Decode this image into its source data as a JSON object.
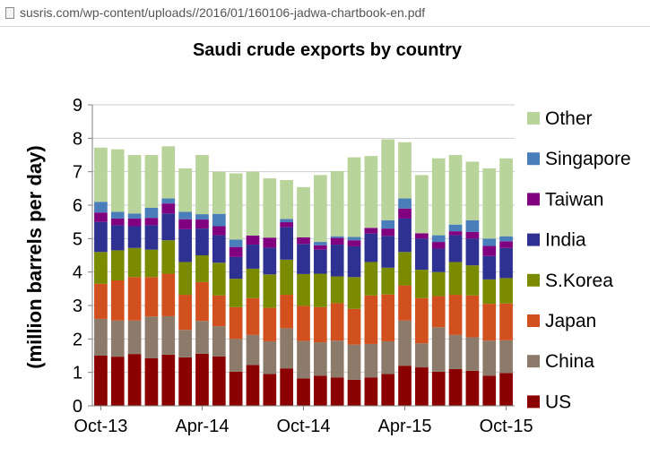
{
  "browser": {
    "url": "susris.com/wp-content/uploads//2016/01/160106-jadwa-chartbook-en.pdf"
  },
  "chart_data": {
    "type": "bar",
    "stacked": true,
    "title": "Saudi crude exports by country",
    "ylabel": "(million barrels per day)",
    "xlabel": "",
    "ylim": [
      0,
      9
    ],
    "yticks": [
      0,
      1,
      2,
      3,
      4,
      5,
      6,
      7,
      8,
      9
    ],
    "gridlines": "y",
    "legend_position": "right",
    "x_tick_labels": [
      {
        "index": 0,
        "label": "Oct-13"
      },
      {
        "index": 6,
        "label": "Apr-14"
      },
      {
        "index": 12,
        "label": "Oct-14"
      },
      {
        "index": 18,
        "label": "Apr-15"
      },
      {
        "index": 24,
        "label": "Oct-15"
      }
    ],
    "categories": [
      "Oct-13",
      "Nov-13",
      "Dec-13",
      "Jan-14",
      "Feb-14",
      "Mar-14",
      "Apr-14",
      "May-14",
      "Jun-14",
      "Jul-14",
      "Aug-14",
      "Sep-14",
      "Oct-14",
      "Nov-14",
      "Dec-14",
      "Jan-15",
      "Feb-15",
      "Mar-15",
      "Apr-15",
      "May-15",
      "Jun-15",
      "Jul-15",
      "Aug-15",
      "Sep-15",
      "Oct-15"
    ],
    "series": [
      {
        "name": "US",
        "color": "#8B0000",
        "values": [
          1.5,
          1.47,
          1.55,
          1.42,
          1.53,
          1.45,
          1.56,
          1.48,
          1.02,
          1.22,
          0.95,
          1.12,
          0.82,
          0.9,
          0.85,
          0.78,
          0.85,
          0.95,
          1.2,
          1.15,
          1.02,
          1.1,
          1.05,
          0.9,
          0.98
        ]
      },
      {
        "name": "China",
        "color": "#8C7B6B",
        "values": [
          1.1,
          1.08,
          1.0,
          1.25,
          1.15,
          0.82,
          0.98,
          0.9,
          0.98,
          0.9,
          0.98,
          1.2,
          1.12,
          1.0,
          1.1,
          1.05,
          1.0,
          0.98,
          1.35,
          0.72,
          1.33,
          1.02,
          1.0,
          1.05,
          0.98
        ]
      },
      {
        "name": "Japan",
        "color": "#D2501E",
        "values": [
          1.05,
          1.2,
          1.3,
          1.18,
          1.27,
          1.05,
          1.16,
          0.92,
          0.95,
          1.1,
          1.0,
          1.0,
          1.05,
          1.05,
          1.12,
          1.07,
          1.45,
          1.4,
          1.05,
          1.35,
          0.93,
          1.2,
          1.25,
          1.1,
          1.1
        ]
      },
      {
        "name": "S.Korea",
        "color": "#7A8B00",
        "values": [
          0.95,
          0.9,
          0.87,
          0.82,
          1.0,
          0.98,
          0.8,
          0.98,
          0.85,
          0.88,
          1.0,
          1.05,
          0.95,
          1.0,
          0.8,
          0.95,
          1.0,
          0.8,
          1.0,
          0.85,
          0.72,
          0.98,
          0.9,
          0.73,
          0.76
        ]
      },
      {
        "name": "India",
        "color": "#2E3192",
        "values": [
          0.9,
          0.75,
          0.65,
          0.73,
          0.8,
          0.98,
          0.8,
          0.82,
          0.65,
          0.72,
          0.8,
          0.97,
          0.9,
          0.72,
          0.95,
          0.92,
          0.85,
          0.95,
          1.0,
          0.93,
          0.7,
          0.8,
          0.8,
          0.7,
          0.9
        ]
      },
      {
        "name": "Taiwan",
        "color": "#800080",
        "values": [
          0.28,
          0.2,
          0.23,
          0.22,
          0.3,
          0.3,
          0.27,
          0.27,
          0.3,
          0.27,
          0.3,
          0.15,
          0.2,
          0.13,
          0.2,
          0.18,
          0.17,
          0.22,
          0.3,
          0.16,
          0.2,
          0.12,
          0.2,
          0.3,
          0.2
        ]
      },
      {
        "name": "Singapore",
        "color": "#4A7EBB",
        "values": [
          0.32,
          0.2,
          0.15,
          0.3,
          0.15,
          0.22,
          0.16,
          0.37,
          0.22,
          0.0,
          0.0,
          0.1,
          0.0,
          0.1,
          0.05,
          0.1,
          0.0,
          0.25,
          0.3,
          0.0,
          0.2,
          0.2,
          0.35,
          0.22,
          0.15
        ]
      },
      {
        "name": "Other",
        "color": "#B8D49A",
        "values": [
          1.62,
          1.87,
          1.75,
          1.58,
          1.56,
          1.3,
          1.77,
          1.26,
          1.98,
          1.91,
          1.77,
          1.16,
          1.5,
          2.0,
          1.95,
          2.38,
          2.15,
          2.42,
          1.68,
          1.74,
          2.3,
          2.08,
          1.75,
          2.1,
          2.33
        ]
      }
    ]
  }
}
